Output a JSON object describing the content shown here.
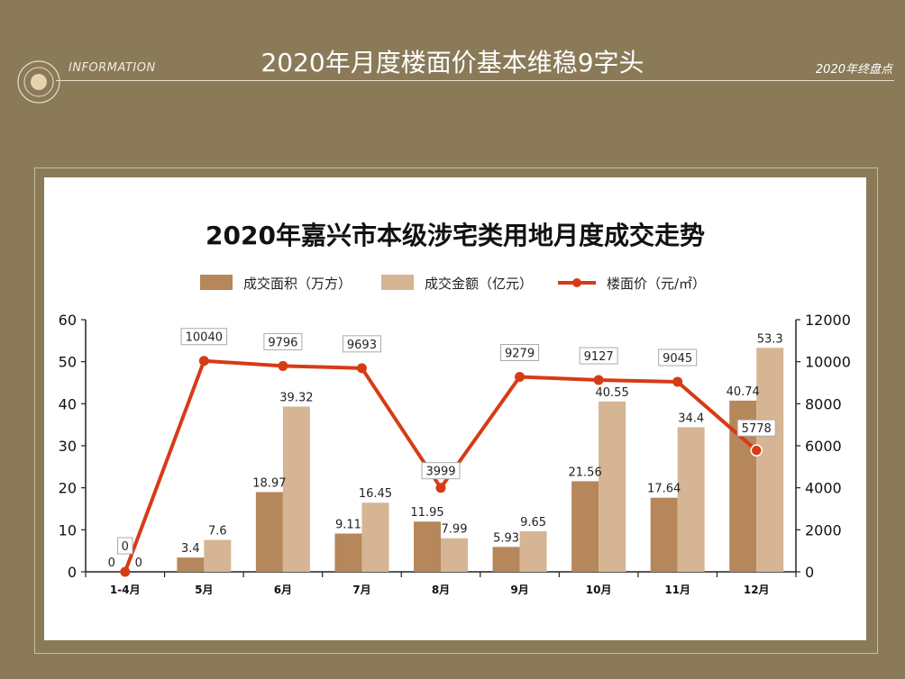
{
  "header": {
    "section_label": "INFORMATION",
    "title": "2020年月度楼面价基本维稳9字头",
    "tag": "2020年终盘点"
  },
  "colors": {
    "background": "#8a7a58",
    "area_bar": "#b5875a",
    "amount_bar": "#d5b594",
    "price_line": "#d63b16"
  },
  "chart_data": {
    "type": "bar",
    "title": "2020年嘉兴市本级涉宅类用地月度成交走势",
    "categories": [
      "1-4月",
      "5月",
      "6月",
      "7月",
      "8月",
      "9月",
      "10月",
      "11月",
      "12月"
    ],
    "series": [
      {
        "name": "成交面积（万方）",
        "type": "bar",
        "axis": "left",
        "values": [
          0,
          3.4,
          18.97,
          9.11,
          11.95,
          5.93,
          21.56,
          17.64,
          40.74
        ]
      },
      {
        "name": "成交金额（亿元）",
        "type": "bar",
        "axis": "left",
        "values": [
          0,
          7.6,
          39.32,
          16.45,
          7.99,
          9.65,
          40.55,
          34.4,
          53.3
        ]
      },
      {
        "name": "楼面价（元/㎡）",
        "type": "line",
        "axis": "right",
        "values": [
          0,
          10040,
          9796,
          9693,
          3999,
          9279,
          9127,
          9045,
          5778
        ]
      }
    ],
    "y_left": {
      "min": 0,
      "max": 60,
      "ticks": [
        0,
        10,
        20,
        30,
        40,
        50,
        60
      ]
    },
    "y_right": {
      "min": 0,
      "max": 12000,
      "ticks": [
        0,
        2000,
        4000,
        6000,
        8000,
        10000,
        12000
      ]
    },
    "legend_position": "top"
  }
}
